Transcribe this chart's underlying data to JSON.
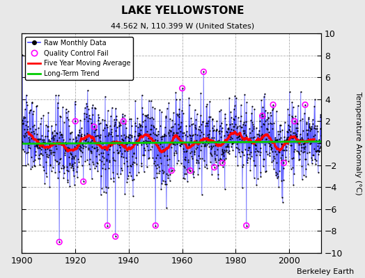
{
  "title": "LAKE YELLOWSTONE",
  "subtitle": "44.562 N, 110.399 W (United States)",
  "ylabel": "Temperature Anomaly (°C)",
  "attribution": "Berkeley Earth",
  "xlim": [
    1900,
    2012
  ],
  "ylim": [
    -10,
    10
  ],
  "xticks": [
    1900,
    1920,
    1940,
    1960,
    1980,
    2000
  ],
  "yticks": [
    -10,
    -8,
    -6,
    -4,
    -2,
    0,
    2,
    4,
    6,
    8,
    10
  ],
  "start_year": 1900,
  "end_year": 2012,
  "bg_color": "#e8e8e8",
  "plot_bg_color": "#ffffff",
  "raw_dot_color": "#000000",
  "stem_color": "#4444ff",
  "qc_color": "#ff00ff",
  "moving_avg_color": "#ff0000",
  "trend_color": "#00cc00",
  "seed": 137
}
